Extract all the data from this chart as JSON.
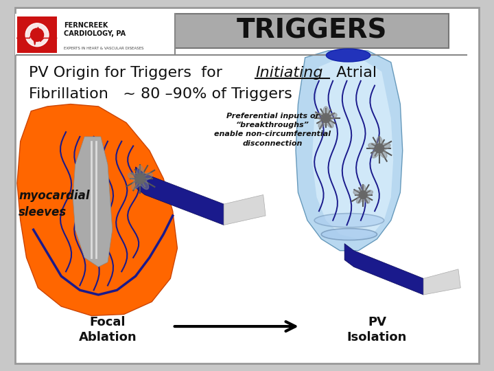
{
  "title": "TRIGGERS",
  "title_box_color": "#aaaaaa",
  "title_text_color": "#111111",
  "bg_color": "#c8c8c8",
  "slide_bg_color": "#f0f0f0",
  "main_text_line1": "PV Origin for Triggers  for ",
  "main_text_italic": "Initiating",
  "main_text_line1b": " Atrial",
  "main_text_line2": "Fibrillation   ~ 80 –90% of Triggers",
  "annotation_text": "Preferential inputs or\n“breakthroughs”\nenable non-circumferential\ndisconnection",
  "label_myocardial": "myocardial\nsleeves",
  "label_focal": "Focal\nAblation",
  "label_pv": "PV\nIsolation",
  "orange_color": "#FF6600",
  "blue_dark": "#1a1a8c",
  "blue_light": "#aaccee",
  "blue_mid": "#7799cc",
  "blue_tube_top": "#2233cc",
  "blue_tube_base": "#88bbdd",
  "gray_probe": "#c8c8c8",
  "burst_color": "#555555",
  "arrow_color": "#000000",
  "text_font_size_main": 16,
  "text_font_size_label": 12,
  "text_font_size_annotation": 8,
  "text_font_size_title": 28
}
